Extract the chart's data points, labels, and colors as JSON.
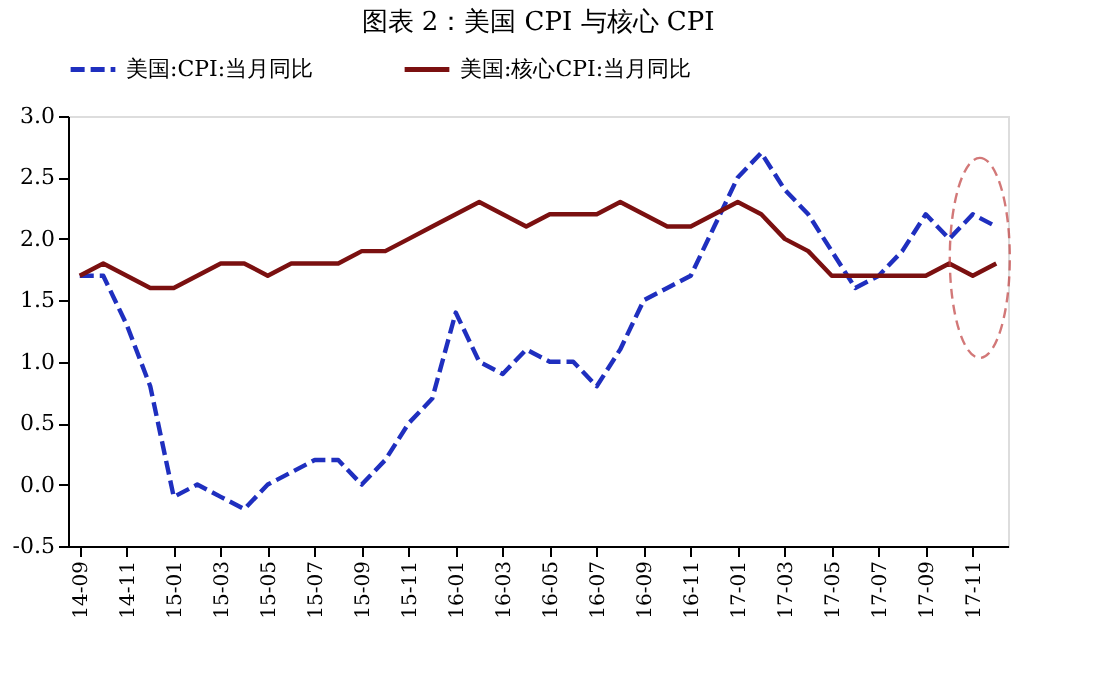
{
  "chart_data": {
    "type": "line",
    "title": "图表 2：美国 CPI 与核心 CPI",
    "categories": [
      "14-09",
      null,
      "14-11",
      null,
      "15-01",
      null,
      "15-03",
      null,
      "15-05",
      null,
      "15-07",
      null,
      "15-09",
      null,
      "15-11",
      null,
      "16-01",
      null,
      "16-03",
      null,
      "16-05",
      null,
      "16-07",
      null,
      "16-09",
      null,
      "16-11",
      null,
      "17-01",
      null,
      "17-03",
      null,
      "17-05",
      null,
      "17-07",
      null,
      "17-09",
      null,
      "17-11",
      null
    ],
    "series": [
      {
        "name": "美国:CPI:当月同比",
        "color": "#1f2fbf",
        "line_style": "dashed",
        "values": [
          1.7,
          1.7,
          1.3,
          0.8,
          -0.1,
          0.0,
          -0.1,
          -0.2,
          0.0,
          0.1,
          0.2,
          0.2,
          0.0,
          0.2,
          0.5,
          0.7,
          1.4,
          1.0,
          0.9,
          1.1,
          1.0,
          1.0,
          0.8,
          1.1,
          1.5,
          1.6,
          1.7,
          2.1,
          2.5,
          2.7,
          2.4,
          2.2,
          1.9,
          1.6,
          1.7,
          1.9,
          2.2,
          2.0,
          2.2,
          2.1
        ]
      },
      {
        "name": "美国:核心CPI:当月同比",
        "color": "#7b1010",
        "line_style": "solid",
        "values": [
          1.7,
          1.8,
          1.7,
          1.6,
          1.6,
          1.7,
          1.8,
          1.8,
          1.7,
          1.8,
          1.8,
          1.8,
          1.9,
          1.9,
          2.0,
          2.1,
          2.2,
          2.3,
          2.2,
          2.1,
          2.2,
          2.2,
          2.2,
          2.3,
          2.2,
          2.1,
          2.1,
          2.2,
          2.3,
          2.2,
          2.0,
          1.9,
          1.7,
          1.7,
          1.7,
          1.7,
          1.7,
          1.8,
          1.7,
          1.8
        ]
      }
    ],
    "ylim": [
      -0.5,
      3.0
    ],
    "yticks": [
      {
        "value": -0.5,
        "label": "-0.5"
      },
      {
        "value": 0,
        "label": "0.0"
      },
      {
        "value": 0.5,
        "label": "0.5"
      },
      {
        "value": 1,
        "label": "1.0"
      },
      {
        "value": 1.5,
        "label": "1.5"
      },
      {
        "value": 2,
        "label": "2.0"
      },
      {
        "value": 2.5,
        "label": "2.5"
      },
      {
        "value": 3,
        "label": "3.0"
      }
    ],
    "grid": false,
    "legend": "top",
    "marker": "none"
  }
}
